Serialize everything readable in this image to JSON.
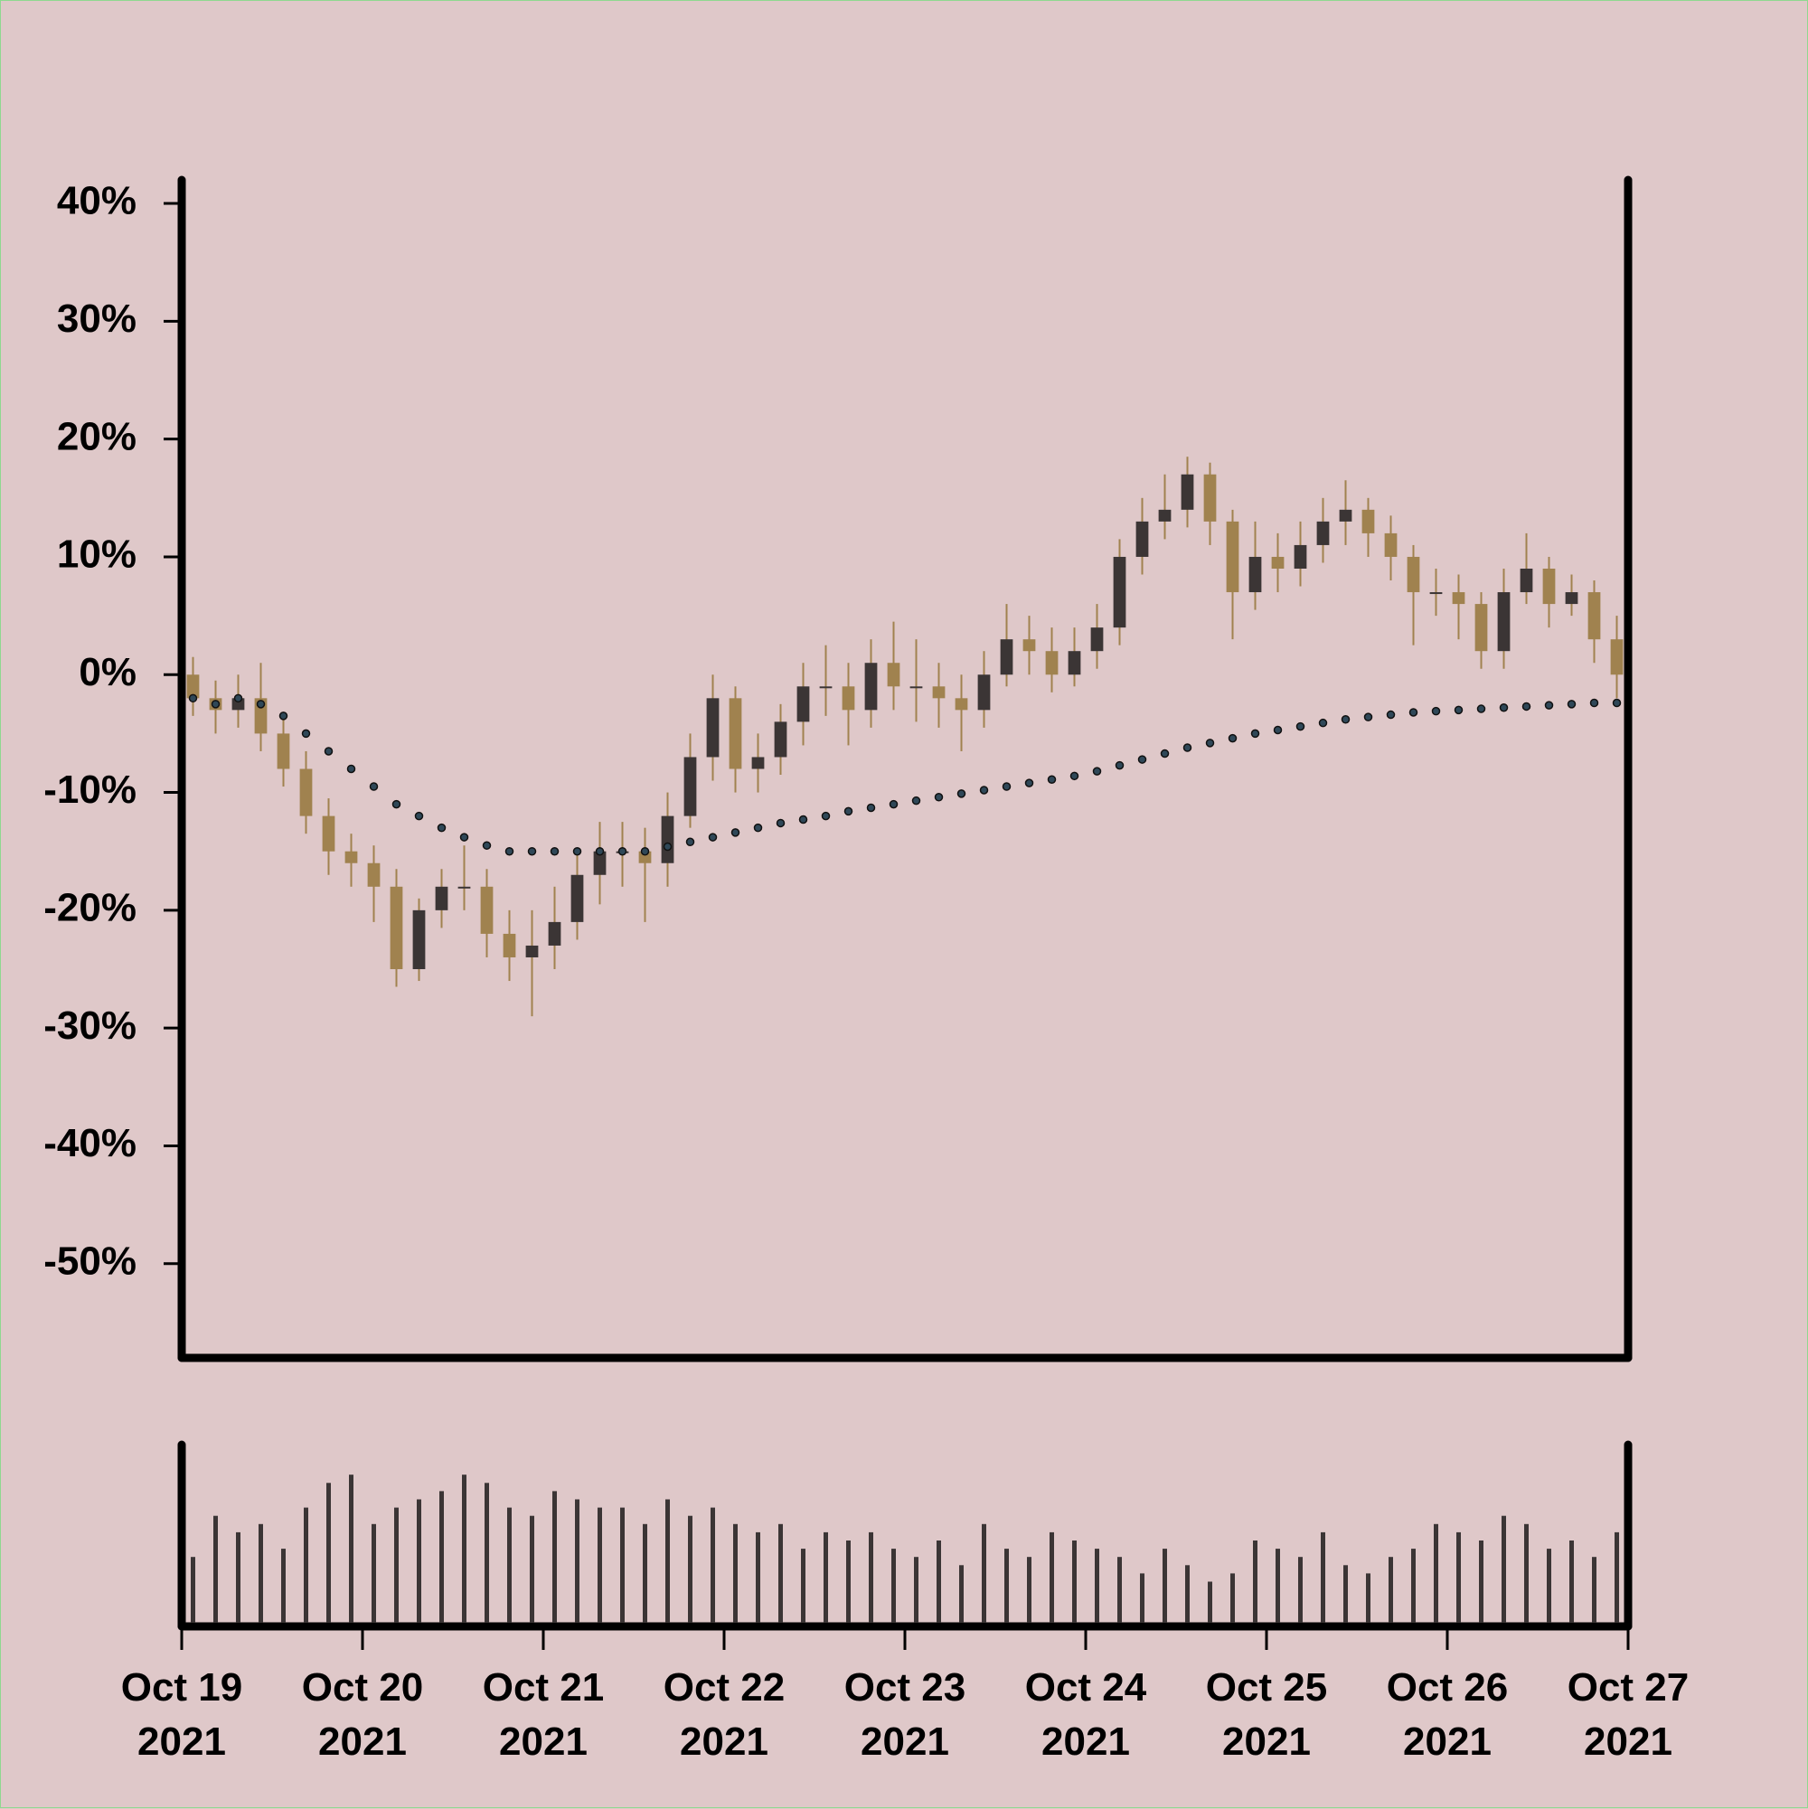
{
  "chart_data": {
    "type": "candlestick",
    "x": [
      "2021-10-19 00:00",
      "2021-10-19 03:00",
      "2021-10-19 06:00",
      "2021-10-19 09:00",
      "2021-10-19 12:00",
      "2021-10-19 15:00",
      "2021-10-19 18:00",
      "2021-10-19 21:00",
      "2021-10-20 00:00",
      "2021-10-20 03:00",
      "2021-10-20 06:00",
      "2021-10-20 09:00",
      "2021-10-20 12:00",
      "2021-10-20 15:00",
      "2021-10-20 18:00",
      "2021-10-20 21:00",
      "2021-10-21 00:00",
      "2021-10-21 03:00",
      "2021-10-21 06:00",
      "2021-10-21 09:00",
      "2021-10-21 12:00",
      "2021-10-21 15:00",
      "2021-10-21 18:00",
      "2021-10-21 21:00",
      "2021-10-22 00:00",
      "2021-10-22 03:00",
      "2021-10-22 06:00",
      "2021-10-22 09:00",
      "2021-10-22 12:00",
      "2021-10-22 15:00",
      "2021-10-22 18:00",
      "2021-10-22 21:00",
      "2021-10-23 00:00",
      "2021-10-23 03:00",
      "2021-10-23 06:00",
      "2021-10-23 09:00",
      "2021-10-23 12:00",
      "2021-10-23 15:00",
      "2021-10-23 18:00",
      "2021-10-23 21:00",
      "2021-10-24 00:00",
      "2021-10-24 03:00",
      "2021-10-24 06:00",
      "2021-10-24 09:00",
      "2021-10-24 12:00",
      "2021-10-24 15:00",
      "2021-10-24 18:00",
      "2021-10-24 21:00",
      "2021-10-25 00:00",
      "2021-10-25 03:00",
      "2021-10-25 06:00",
      "2021-10-25 09:00",
      "2021-10-25 12:00",
      "2021-10-25 15:00",
      "2021-10-25 18:00",
      "2021-10-25 21:00",
      "2021-10-26 00:00",
      "2021-10-26 03:00",
      "2021-10-26 06:00",
      "2021-10-26 09:00",
      "2021-10-26 12:00",
      "2021-10-26 15:00",
      "2021-10-26 18:00",
      "2021-10-26 21:00"
    ],
    "open": [
      0,
      -2,
      -3,
      -2,
      -5,
      -8,
      -12,
      -15,
      -16,
      -18,
      -25,
      -20,
      -18,
      -18,
      -22,
      -24,
      -23,
      -21,
      -17,
      -15,
      -15,
      -16,
      -12,
      -7,
      -2,
      -8,
      -7,
      -4,
      -1,
      -1,
      -3,
      1,
      -1,
      -1,
      -2,
      -3,
      0,
      3,
      2,
      0,
      2,
      4,
      10,
      13,
      14,
      17,
      13,
      7,
      10,
      9,
      11,
      13,
      14,
      12,
      10,
      7,
      7,
      6,
      2,
      7,
      9,
      6,
      7,
      3
    ],
    "high": [
      1.5,
      -0.5,
      0,
      1,
      -3.5,
      -6.5,
      -10.5,
      -13.5,
      -14.5,
      -16.5,
      -19,
      -16.5,
      -14.5,
      -16.5,
      -20,
      -20,
      -18,
      -15,
      -12.5,
      -12.5,
      -13,
      -10,
      -5,
      0,
      -1,
      -5,
      -2.5,
      1,
      2.5,
      1,
      3,
      4.5,
      3,
      1,
      0,
      2,
      6,
      5,
      4,
      4,
      6,
      11.5,
      15,
      17,
      18.5,
      18,
      14,
      13,
      12,
      13,
      15,
      16.5,
      15,
      13.5,
      11,
      9,
      8.5,
      7,
      9,
      12,
      10,
      8.5,
      8,
      5
    ],
    "low": [
      -3.5,
      -5,
      -4.5,
      -6.5,
      -9.5,
      -13.5,
      -17,
      -18,
      -21,
      -26.5,
      -26,
      -21.5,
      -20,
      -24,
      -26,
      -29,
      -25,
      -22.5,
      -19.5,
      -18,
      -21,
      -18,
      -13,
      -9,
      -10,
      -10,
      -8.5,
      -6,
      -3.5,
      -6,
      -4.5,
      -3,
      -4,
      -4.5,
      -6.5,
      -4.5,
      -1,
      0,
      -1.5,
      -1,
      0.5,
      2.5,
      8.5,
      11.5,
      12.5,
      11,
      3,
      5.5,
      7,
      7.5,
      9.5,
      11,
      10,
      8,
      2.5,
      5,
      3,
      0.5,
      0.5,
      6,
      4,
      5,
      1,
      -2
    ],
    "close": [
      -2,
      -3,
      -2,
      -5,
      -8,
      -12,
      -15,
      -16,
      -18,
      -25,
      -20,
      -18,
      -18,
      -22,
      -24,
      -23,
      -21,
      -17,
      -15,
      -15,
      -16,
      -12,
      -7,
      -2,
      -8,
      -7,
      -4,
      -1,
      -1,
      -3,
      1,
      -1,
      -1,
      -2,
      -3,
      0,
      3,
      2,
      0,
      2,
      4,
      10,
      13,
      14,
      17,
      13,
      7,
      10,
      9,
      11,
      13,
      14,
      12,
      10,
      7,
      7,
      6,
      2,
      7,
      9,
      6,
      7,
      3,
      0
    ],
    "volume": [
      40,
      65,
      55,
      60,
      45,
      70,
      85,
      90,
      60,
      70,
      75,
      80,
      90,
      85,
      70,
      65,
      80,
      75,
      70,
      70,
      60,
      75,
      65,
      70,
      60,
      55,
      60,
      45,
      55,
      50,
      55,
      45,
      40,
      50,
      35,
      60,
      45,
      40,
      55,
      50,
      45,
      40,
      30,
      45,
      35,
      25,
      30,
      50,
      45,
      40,
      55,
      35,
      30,
      40,
      45,
      60,
      55,
      50,
      65,
      60,
      45,
      50,
      40,
      55
    ],
    "volume_ylim": [
      0,
      100
    ],
    "moving_average": {
      "color": "#2f4858",
      "values": [
        -2,
        -2.5,
        -2,
        -2.5,
        -3.5,
        -5,
        -6.5,
        -8,
        -9.5,
        -11,
        -12,
        -13,
        -13.8,
        -14.5,
        -15,
        -15,
        -15,
        -15,
        -15,
        -15,
        -15,
        -14.6,
        -14.2,
        -13.8,
        -13.4,
        -13,
        -12.6,
        -12.3,
        -12,
        -11.6,
        -11.3,
        -11,
        -10.7,
        -10.4,
        -10.1,
        -9.8,
        -9.5,
        -9.2,
        -8.9,
        -8.6,
        -8.2,
        -7.7,
        -7.2,
        -6.7,
        -6.2,
        -5.8,
        -5.4,
        -5,
        -4.7,
        -4.4,
        -4.1,
        -3.8,
        -3.6,
        -3.4,
        -3.2,
        -3.1,
        -3,
        -2.9,
        -2.8,
        -2.7,
        -2.6,
        -2.5,
        -2.4,
        -2.4
      ]
    },
    "up_color": "#3b3535",
    "down_color": "#a0824f",
    "volume_color": "#3b3535",
    "ylim": [
      -58,
      42
    ],
    "yticks": [
      {
        "value": -50,
        "label": "-50%"
      },
      {
        "value": -40,
        "label": "-40%"
      },
      {
        "value": -30,
        "label": "-30%"
      },
      {
        "value": -20,
        "label": "-20%"
      },
      {
        "value": -10,
        "label": "-10%"
      },
      {
        "value": 0,
        "label": "0%"
      },
      {
        "value": 10,
        "label": "10%"
      },
      {
        "value": 20,
        "label": "20%"
      },
      {
        "value": 30,
        "label": "30%"
      },
      {
        "value": 40,
        "label": "40%"
      }
    ],
    "xlim": [
      "2021-10-19 00:00",
      "2021-10-27 00:00"
    ],
    "xticks": [
      {
        "value": "2021-10-19 00:00",
        "label": "Oct 19\n2021"
      },
      {
        "value": "2021-10-20 00:00",
        "label": "Oct 20\n2021"
      },
      {
        "value": "2021-10-21 00:00",
        "label": "Oct 21\n2021"
      },
      {
        "value": "2021-10-22 00:00",
        "label": "Oct 22\n2021"
      },
      {
        "value": "2021-10-23 00:00",
        "label": "Oct 23\n2021"
      },
      {
        "value": "2021-10-24 00:00",
        "label": "Oct 24\n2021"
      },
      {
        "value": "2021-10-25 00:00",
        "label": "Oct 25\n2021"
      },
      {
        "value": "2021-10-26 00:00",
        "label": "Oct 26\n2021"
      },
      {
        "value": "2021-10-27 00:00",
        "label": "Oct 27\n2021"
      }
    ],
    "grid": false
  }
}
